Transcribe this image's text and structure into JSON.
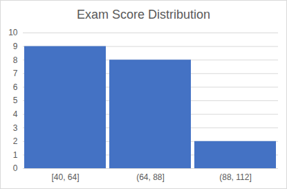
{
  "chart_data": {
    "type": "bar",
    "title": "Exam Score Distribution",
    "categories": [
      "[40, 64]",
      "(64, 88]",
      "(88, 112]"
    ],
    "values": [
      9,
      8,
      2
    ],
    "color": "#4472c4",
    "ylim": [
      0,
      10
    ],
    "yticks": [
      0,
      1,
      2,
      3,
      4,
      5,
      6,
      7,
      8,
      9,
      10
    ],
    "grid": true
  }
}
